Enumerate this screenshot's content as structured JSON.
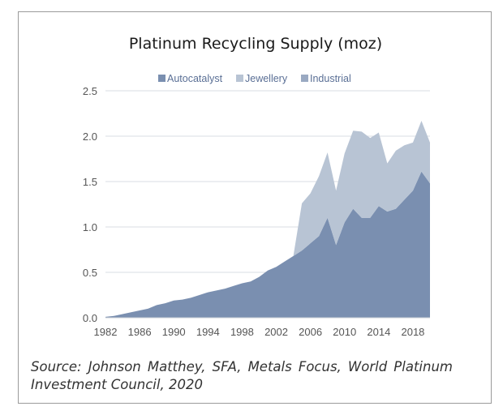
{
  "chart_data": {
    "type": "area",
    "stacked": true,
    "title": "Platinum Recycling Supply (moz)",
    "xlabel": "",
    "ylabel": "",
    "ylim": [
      0,
      2.5
    ],
    "xlim": [
      1982,
      2020
    ],
    "yticks": [
      "0.0",
      "0.5",
      "1.0",
      "1.5",
      "2.0",
      "2.5"
    ],
    "xticks": [
      "1982",
      "1986",
      "1990",
      "1994",
      "1998",
      "2002",
      "2006",
      "2010",
      "2014",
      "2018"
    ],
    "grid": true,
    "legend": "top-center",
    "x": [
      1982,
      1983,
      1984,
      1985,
      1986,
      1987,
      1988,
      1989,
      1990,
      1991,
      1992,
      1993,
      1994,
      1995,
      1996,
      1997,
      1998,
      1999,
      2000,
      2001,
      2002,
      2003,
      2004,
      2005,
      2006,
      2007,
      2008,
      2009,
      2010,
      2011,
      2012,
      2013,
      2014,
      2015,
      2016,
      2017,
      2018,
      2019,
      2020
    ],
    "series": [
      {
        "name": "Autocatalyst",
        "color": "#7a8fb0",
        "values": [
          0.01,
          0.02,
          0.04,
          0.06,
          0.08,
          0.1,
          0.14,
          0.16,
          0.19,
          0.2,
          0.22,
          0.25,
          0.28,
          0.3,
          0.32,
          0.35,
          0.38,
          0.4,
          0.45,
          0.52,
          0.56,
          0.62,
          0.68,
          0.74,
          0.82,
          0.9,
          1.1,
          0.8,
          1.05,
          1.2,
          1.1,
          1.1,
          1.23,
          1.17,
          1.2,
          1.3,
          1.4,
          1.61,
          1.48
        ]
      },
      {
        "name": "Jewellery",
        "color": "#b8c4d4",
        "values": [
          0,
          0,
          0,
          0,
          0,
          0,
          0,
          0,
          0,
          0,
          0,
          0,
          0,
          0,
          0,
          0,
          0,
          0,
          0,
          0,
          0,
          0,
          0,
          0.52,
          0.55,
          0.66,
          0.72,
          0.6,
          0.76,
          0.86,
          0.95,
          0.88,
          0.81,
          0.53,
          0.64,
          0.6,
          0.53,
          0.56,
          0.45
        ]
      },
      {
        "name": "Industrial",
        "color": "#9aa9c2",
        "values": [
          0,
          0,
          0,
          0,
          0,
          0,
          0,
          0,
          0,
          0,
          0,
          0,
          0,
          0,
          0,
          0,
          0,
          0,
          0,
          0,
          0,
          0,
          0,
          0,
          0,
          0,
          0,
          0,
          0,
          0,
          0,
          0,
          0,
          0,
          0,
          0,
          0,
          0,
          0
        ]
      }
    ],
    "source": "Source: Johnson Matthey, SFA, Metals Focus, World Platinum Investment Council, 2020"
  }
}
